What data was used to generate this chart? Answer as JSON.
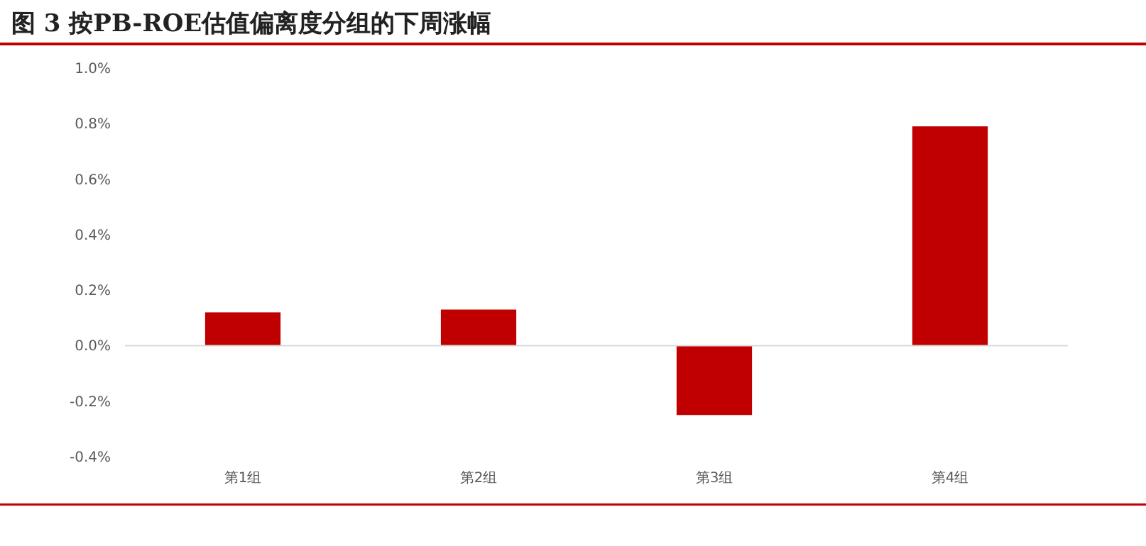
{
  "chart_data": {
    "type": "bar",
    "title": "图 3 按PB-ROE估值偏离度分组的下周涨幅",
    "categories": [
      "第1组",
      "第2组",
      "第3组",
      "第4组"
    ],
    "values": [
      0.12,
      0.13,
      -0.25,
      0.79
    ],
    "color": "#c00000",
    "ylim": [
      -0.4,
      1.0
    ],
    "yticks": [
      {
        "value": -0.4,
        "label": "-0.4%"
      },
      {
        "value": -0.2,
        "label": "-0.2%"
      },
      {
        "value": 0,
        "label": "0.0%"
      },
      {
        "value": 0.2,
        "label": "0.2%"
      },
      {
        "value": 0.4,
        "label": "0.4%"
      },
      {
        "value": 0.6,
        "label": "0.6%"
      },
      {
        "value": 0.8,
        "label": "0.8%"
      },
      {
        "value": 1.0,
        "label": "1.0%"
      }
    ]
  }
}
